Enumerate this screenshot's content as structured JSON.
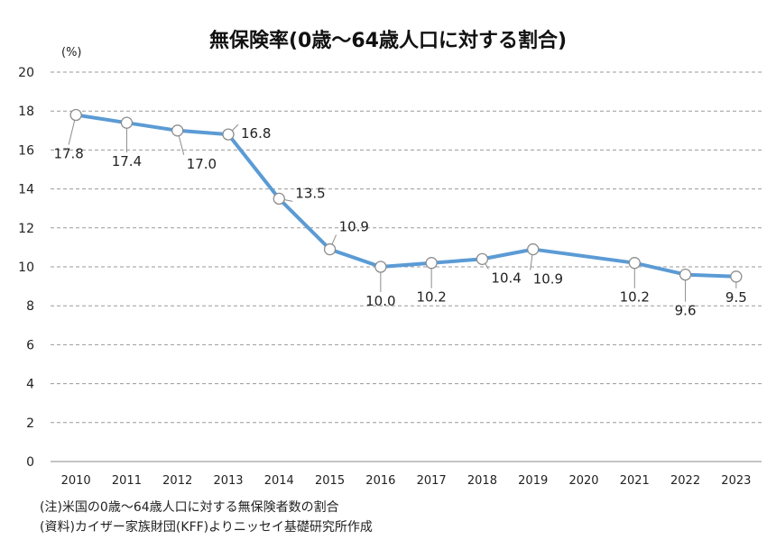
{
  "chart_data": {
    "type": "line",
    "title": "無保険率(0歳～64歳人口に対する割合)",
    "unit_label": "(%)",
    "x": [
      "2010",
      "2011",
      "2012",
      "2013",
      "2014",
      "2015",
      "2016",
      "2017",
      "2018",
      "2019",
      "2020",
      "2021",
      "2022",
      "2023"
    ],
    "series": [
      {
        "values": [
          17.8,
          17.4,
          17.0,
          16.8,
          13.5,
          10.9,
          10.0,
          10.2,
          10.4,
          10.9,
          null,
          10.2,
          9.6,
          9.5
        ],
        "data_labels": [
          "17.8",
          "17.4",
          "17.0",
          "16.8",
          "13.5",
          "10.9",
          "10.0",
          "10.2",
          "10.4",
          "10.9",
          "",
          "10.2",
          "9.6",
          "9.5"
        ],
        "color": "#5b9bd5"
      }
    ],
    "ylim": [
      0,
      20
    ],
    "yticks": [
      0,
      2,
      4,
      6,
      8,
      10,
      12,
      14,
      16,
      18,
      20
    ],
    "grid": "horizontal dashed",
    "legend": "none"
  },
  "notes": [
    "(注)米国の0歳～64歳人口に対する無保険者数の割合",
    "(資料)カイザー家族財団(KFF)よりニッセイ基礎研究所作成"
  ]
}
